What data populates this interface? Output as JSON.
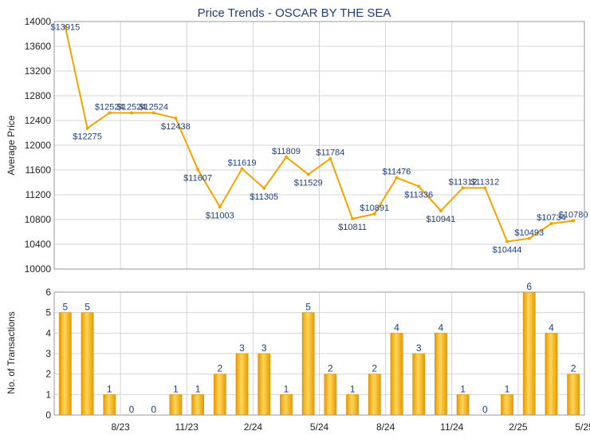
{
  "chart_data": [
    {
      "type": "line",
      "title": "Price Trends - OSCAR BY THE SEA",
      "ylabel": "Average Price",
      "ylim": [
        10000,
        14000
      ],
      "yticks": [
        10000,
        10400,
        10800,
        11200,
        11600,
        12000,
        12400,
        12800,
        13200,
        13600,
        14000
      ],
      "grid": true,
      "color": "#f5a300",
      "values": [
        13915,
        12275,
        12524,
        12524,
        12524,
        12438,
        11607,
        11003,
        11619,
        11305,
        11809,
        11529,
        11784,
        10811,
        10891,
        11476,
        11336,
        10941,
        11312,
        11312,
        10444,
        10493,
        10734,
        10780
      ],
      "labels": [
        "$13915",
        "$12275",
        "$12524",
        "$12524",
        "$12524",
        "$12438",
        "$11607",
        "$11003",
        "$11619",
        "$11305",
        "$11809",
        "$11529",
        "$11784",
        "$10811",
        "$10891",
        "$11476",
        "$11336",
        "$10941",
        "$11312",
        "$11312",
        "$10444",
        "$10493",
        "$10734",
        "$10780"
      ]
    },
    {
      "type": "bar",
      "ylabel": "No. of Transactions",
      "ylim": [
        0,
        6
      ],
      "yticks": [
        0,
        1,
        2,
        3,
        4,
        5,
        6
      ],
      "grid": true,
      "color": "#f5a300",
      "values": [
        5,
        5,
        1,
        0,
        0,
        1,
        1,
        2,
        3,
        3,
        1,
        5,
        2,
        1,
        2,
        4,
        3,
        4,
        1,
        0,
        1,
        6,
        4,
        2
      ],
      "xticks": [
        {
          "index": 2,
          "label": "8/23"
        },
        {
          "index": 5,
          "label": "11/23"
        },
        {
          "index": 8,
          "label": "2/24"
        },
        {
          "index": 11,
          "label": "5/24"
        },
        {
          "index": 14,
          "label": "8/24"
        },
        {
          "index": 17,
          "label": "11/24"
        },
        {
          "index": 20,
          "label": "2/25"
        },
        {
          "index": 23,
          "label": "5/25"
        }
      ]
    }
  ]
}
